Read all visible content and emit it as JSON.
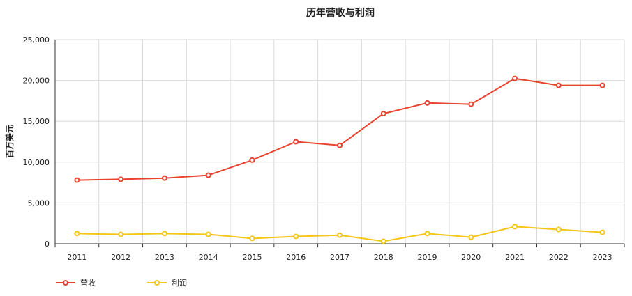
{
  "chart_data": {
    "type": "line",
    "title": "历年营收与利润",
    "xlabel": "",
    "ylabel": "百万美元",
    "categories": [
      "2011",
      "2012",
      "2013",
      "2014",
      "2015",
      "2016",
      "2017",
      "2018",
      "2019",
      "2020",
      "2021",
      "2022",
      "2023"
    ],
    "ylim": [
      0,
      25000
    ],
    "yticks": [
      0,
      5000,
      10000,
      15000,
      20000,
      25000
    ],
    "ytick_labels": [
      "0",
      "5,000",
      "10,000",
      "15,000",
      "20,000",
      "25,000"
    ],
    "grid": true,
    "legend_position": "bottom-left",
    "series": [
      {
        "name": "营收",
        "color": "#e8432f",
        "values": [
          7800,
          7900,
          8050,
          8400,
          10250,
          12500,
          12050,
          15950,
          17250,
          17100,
          20250,
          19400,
          19400
        ]
      },
      {
        "name": "利润",
        "color": "#f5c518",
        "values": [
          1250,
          1150,
          1250,
          1150,
          650,
          900,
          1050,
          300,
          1250,
          800,
          2100,
          1750,
          1400
        ]
      }
    ]
  }
}
